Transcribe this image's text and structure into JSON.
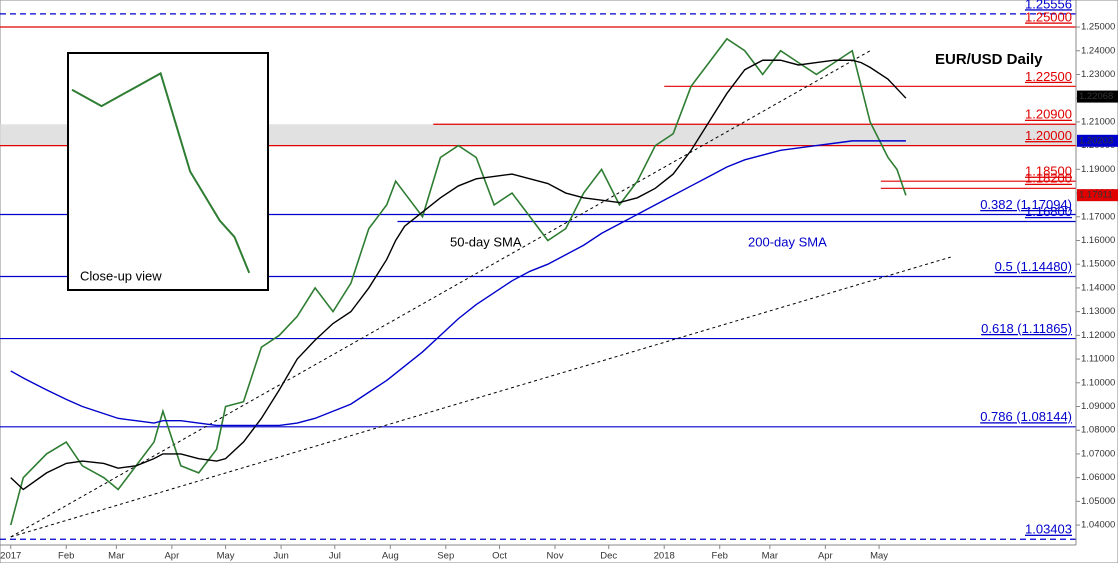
{
  "chart_data": {
    "type": "line",
    "title": "EUR/USD Daily",
    "x": [
      0,
      7,
      20,
      31,
      40,
      52,
      60,
      70,
      80,
      85,
      95,
      105,
      115,
      120,
      130,
      140,
      150,
      160,
      170,
      180,
      190,
      200,
      210,
      215,
      220,
      230,
      240,
      250,
      260,
      270,
      280,
      290,
      300,
      310,
      320,
      330,
      340,
      350,
      360,
      370,
      380,
      390,
      400,
      410,
      420,
      430,
      440,
      450,
      460,
      470,
      475,
      480,
      490,
      495,
      500
    ],
    "series": [
      {
        "name": "EUR/USD",
        "color": "#2e7d32",
        "values": [
          1.04,
          1.06,
          1.07,
          1.075,
          1.065,
          1.06,
          1.055,
          1.065,
          1.075,
          1.088,
          1.065,
          1.062,
          1.072,
          1.09,
          1.092,
          1.115,
          1.12,
          1.128,
          1.14,
          1.13,
          1.142,
          1.165,
          1.175,
          1.185,
          1.18,
          1.17,
          1.195,
          1.2,
          1.195,
          1.175,
          1.18,
          1.17,
          1.16,
          1.165,
          1.18,
          1.19,
          1.175,
          1.185,
          1.2,
          1.205,
          1.225,
          1.235,
          1.245,
          1.24,
          1.23,
          1.24,
          1.235,
          1.23,
          1.235,
          1.24,
          1.225,
          1.21,
          1.195,
          1.19,
          1.179
        ]
      },
      {
        "name": "50-day SMA",
        "color": "#000000",
        "values": [
          1.06,
          1.055,
          1.062,
          1.066,
          1.067,
          1.066,
          1.064,
          1.065,
          1.068,
          1.07,
          1.07,
          1.068,
          1.067,
          1.068,
          1.075,
          1.085,
          1.097,
          1.11,
          1.118,
          1.125,
          1.13,
          1.14,
          1.152,
          1.16,
          1.166,
          1.172,
          1.178,
          1.183,
          1.186,
          1.187,
          1.188,
          1.186,
          1.184,
          1.18,
          1.178,
          1.177,
          1.176,
          1.178,
          1.182,
          1.188,
          1.198,
          1.21,
          1.222,
          1.232,
          1.236,
          1.236,
          1.234,
          1.235,
          1.236,
          1.236,
          1.235,
          1.233,
          1.228,
          1.224,
          1.22
        ]
      },
      {
        "name": "200-day SMA",
        "color": "#0000cc",
        "values": [
          1.105,
          1.102,
          1.097,
          1.093,
          1.09,
          1.087,
          1.085,
          1.084,
          1.083,
          1.084,
          1.084,
          1.083,
          1.082,
          1.082,
          1.082,
          1.082,
          1.082,
          1.083,
          1.085,
          1.088,
          1.091,
          1.096,
          1.101,
          1.104,
          1.107,
          1.113,
          1.12,
          1.127,
          1.133,
          1.138,
          1.143,
          1.147,
          1.15,
          1.154,
          1.158,
          1.163,
          1.167,
          1.171,
          1.175,
          1.179,
          1.183,
          1.187,
          1.191,
          1.194,
          1.196,
          1.198,
          1.199,
          1.2,
          1.201,
          1.202,
          1.202,
          1.202,
          1.202,
          1.202,
          1.202
        ]
      }
    ],
    "levels": [
      {
        "value": 1.25556,
        "label": "1.25556",
        "color": "#0000cc",
        "from": -6,
        "dashed": true
      },
      {
        "value": 1.25,
        "label": "1.25000",
        "color": "#e00000",
        "from": -6
      },
      {
        "value": 1.225,
        "label": "1.22500",
        "color": "#e00000",
        "from": 365
      },
      {
        "value": 1.209,
        "label": "1.20900",
        "color": "#e00000",
        "from": 236
      },
      {
        "value": 1.2,
        "label": "1.20000",
        "color": "#e00000",
        "from": -6
      },
      {
        "value": 1.185,
        "label": "1.18500",
        "color": "#e00000",
        "from": 486
      },
      {
        "value": 1.182,
        "label": "1.18200",
        "color": "#e00000",
        "from": 486
      },
      {
        "value": 1.17094,
        "label": "0.382 (1.17094)",
        "color": "#0000cc",
        "from": -6
      },
      {
        "value": 1.168,
        "label": "1.16800",
        "color": "#0000cc",
        "from": 216
      },
      {
        "value": 1.1448,
        "label": "0.5 (1.14480)",
        "color": "#0000cc",
        "from": -6
      },
      {
        "value": 1.11865,
        "label": "0.618 (1.11865)",
        "color": "#0000cc",
        "from": -6
      },
      {
        "value": 1.08144,
        "label": "0.786 (1.08144)",
        "color": "#0000cc",
        "from": -6
      },
      {
        "value": 1.03403,
        "label": "1.03403",
        "color": "#0000cc",
        "from": -6,
        "dashed": true
      }
    ],
    "band": [
      1.2,
      1.209
    ],
    "trendlines": [
      {
        "x": [
          0,
          480
        ],
        "y": [
          1.035,
          1.24
        ]
      },
      {
        "x": [
          0,
          525
        ],
        "y": [
          1.035,
          1.153
        ]
      }
    ],
    "tags": [
      {
        "value": 1.22068,
        "label": "1.22068",
        "color": "#000000"
      },
      {
        "value": 1.20203,
        "label": "1.20203",
        "color": "#0000cc"
      },
      {
        "value": 1.17911,
        "label": "1.17911",
        "color": "#e00000"
      }
    ],
    "annotations": [
      "50-day SMA",
      "200-day SMA",
      "Close-up view"
    ],
    "xlim": [
      -6,
      595
    ],
    "ylim": [
      1.0316,
      1.2614
    ],
    "xticks": [
      {
        "value": 0,
        "label": "2017"
      },
      {
        "value": 31,
        "label": "Feb"
      },
      {
        "value": 59,
        "label": "Mar"
      },
      {
        "value": 90,
        "label": "Apr"
      },
      {
        "value": 120,
        "label": "May"
      },
      {
        "value": 151,
        "label": "Jun"
      },
      {
        "value": 181,
        "label": "Jul"
      },
      {
        "value": 212,
        "label": "Aug"
      },
      {
        "value": 243,
        "label": "Sep"
      },
      {
        "value": 273,
        "label": "Oct"
      },
      {
        "value": 304,
        "label": "Nov"
      },
      {
        "value": 334,
        "label": "Dec"
      },
      {
        "value": 365,
        "label": "2018"
      },
      {
        "value": 396,
        "label": "Feb"
      },
      {
        "value": 424,
        "label": "Mar"
      },
      {
        "value": 455,
        "label": "Apr"
      },
      {
        "value": 485,
        "label": "May"
      }
    ],
    "yticks": [
      {
        "value": 1.04,
        "label": "1.04000"
      },
      {
        "value": 1.05,
        "label": "1.05000"
      },
      {
        "value": 1.06,
        "label": "1.06000"
      },
      {
        "value": 1.07,
        "label": "1.07000"
      },
      {
        "value": 1.08,
        "label": "1.08000"
      },
      {
        "value": 1.09,
        "label": "1.09000"
      },
      {
        "value": 1.1,
        "label": "1.10000"
      },
      {
        "value": 1.11,
        "label": "1.11000"
      },
      {
        "value": 1.12,
        "label": "1.12000"
      },
      {
        "value": 1.13,
        "label": "1.13000"
      },
      {
        "value": 1.14,
        "label": "1.14000"
      },
      {
        "value": 1.15,
        "label": "1.15000"
      },
      {
        "value": 1.16,
        "label": "1.16000"
      },
      {
        "value": 1.17,
        "label": "1.17000"
      },
      {
        "value": 1.18,
        "label": "1.18000"
      },
      {
        "value": 1.19,
        "label": "1.19000"
      },
      {
        "value": 1.2,
        "label": "1.20000"
      },
      {
        "value": 1.21,
        "label": "1.21000"
      },
      {
        "value": 1.22,
        "label": "1.22000"
      },
      {
        "value": 1.23,
        "label": "1.23000"
      },
      {
        "value": 1.24,
        "label": "1.24000"
      },
      {
        "value": 1.25,
        "label": "1.25000"
      }
    ]
  }
}
